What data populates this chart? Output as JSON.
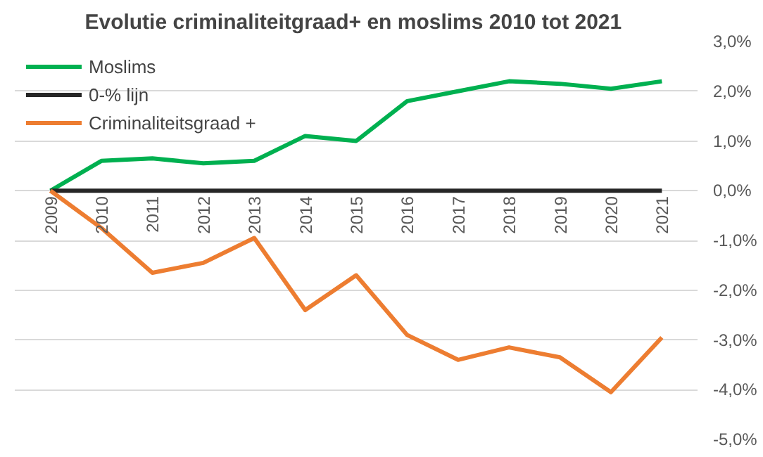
{
  "chart_data": {
    "type": "line",
    "title": "Evolutie criminaliteitgraad+  en moslims 2010 tot 2021",
    "categories": [
      "2009",
      "2010",
      "2011",
      "2012",
      "2013",
      "2014",
      "2015",
      "2016",
      "2017",
      "2018",
      "2019",
      "2020",
      "2021"
    ],
    "series": [
      {
        "name": "Moslims",
        "color": "#00b050",
        "values": [
          0,
          0.6,
          0.65,
          0.55,
          0.6,
          1.1,
          1.0,
          1.8,
          2.0,
          2.2,
          2.15,
          2.05,
          2.2
        ]
      },
      {
        "name": "0-% lijn",
        "color": "#262626",
        "values": [
          0,
          0,
          0,
          0,
          0,
          0,
          0,
          0,
          0,
          0,
          0,
          0,
          0
        ]
      },
      {
        "name": "Criminaliteitsgraad +",
        "color": "#ed7d31",
        "values": [
          0,
          -0.75,
          -1.65,
          -1.45,
          -0.95,
          -2.4,
          -1.7,
          -2.9,
          -3.4,
          -3.15,
          -3.35,
          -4.05,
          -2.95
        ]
      }
    ],
    "ylim": [
      -5,
      3
    ],
    "yticks": [
      {
        "value": -5,
        "label": "-5,0%"
      },
      {
        "value": -4,
        "label": "-4,0%"
      },
      {
        "value": -3,
        "label": "-3,0%"
      },
      {
        "value": -2,
        "label": "-2,0%"
      },
      {
        "value": -1,
        "label": "-1,0%"
      },
      {
        "value": 0,
        "label": "0,0%"
      },
      {
        "value": 1,
        "label": "1,0%"
      },
      {
        "value": 2,
        "label": "2,0%"
      },
      {
        "value": 3,
        "label": "3,0%"
      }
    ],
    "grid": "y",
    "legend": "top left",
    "marker": "none",
    "line_style": "solid"
  }
}
